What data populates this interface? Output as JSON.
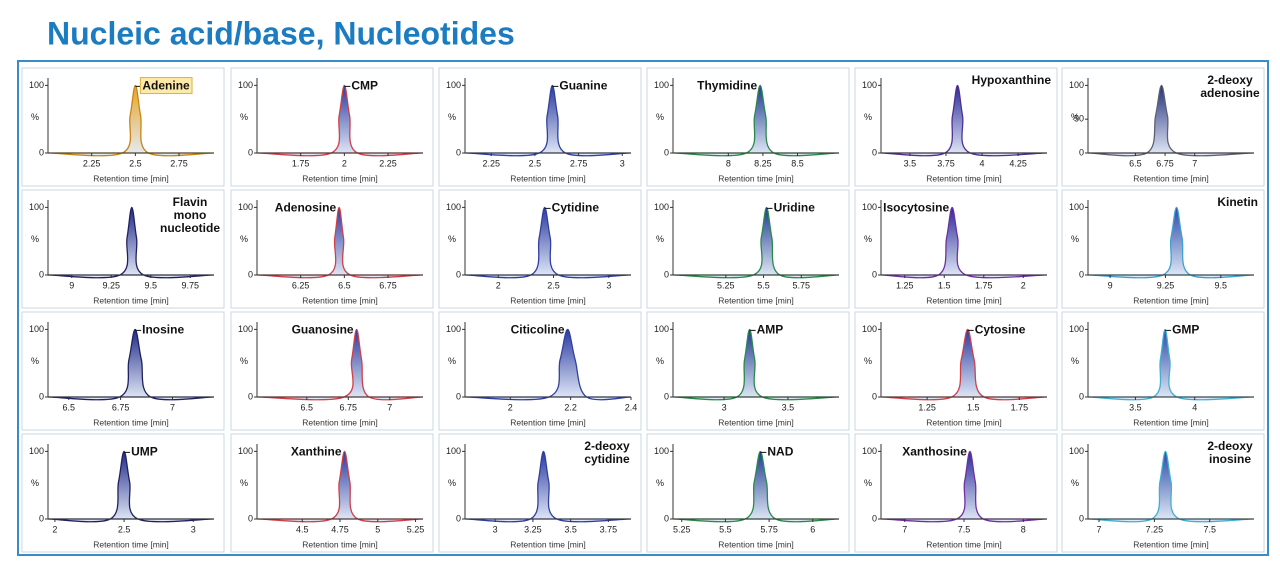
{
  "title": "Nucleic acid/base, Nucleotides",
  "chart_data": [
    {
      "type": "line",
      "title": "Adenine",
      "label_position": "right",
      "label_highlight": true,
      "x_label": "Retention time [min]",
      "y_label": "%",
      "x": [
        2.0,
        2.425,
        2.47,
        2.5,
        2.53,
        2.575,
        2.95
      ],
      "values": [
        0,
        0,
        55,
        100,
        55,
        0,
        0
      ],
      "color": "#c98510",
      "fill": "#e8a424",
      "xlim": [
        2.0,
        2.95
      ],
      "xticks": [
        2.25,
        2.5,
        2.75
      ],
      "ylim": [
        0,
        105
      ],
      "yticks": [
        0,
        100
      ]
    },
    {
      "type": "line",
      "title": "CMP",
      "label_position": "right",
      "x_label": "Retention time [min]",
      "y_label": "%",
      "x": [
        1.5,
        1.925,
        1.97,
        2.0,
        2.03,
        2.075,
        2.45
      ],
      "values": [
        0,
        0,
        55,
        100,
        55,
        0,
        0
      ],
      "color": "#d04048",
      "fill": "#2a3aa0",
      "xlim": [
        1.5,
        2.45
      ],
      "xticks": [
        1.75,
        2,
        2.25
      ],
      "ylim": [
        0,
        105
      ],
      "yticks": [
        0,
        100
      ]
    },
    {
      "type": "line",
      "title": "Guanine",
      "label_position": "right",
      "x_label": "Retention time [min]",
      "y_label": "%",
      "x": [
        2.1,
        2.525,
        2.57,
        2.6,
        2.63,
        2.675,
        3.05
      ],
      "values": [
        0,
        0,
        55,
        100,
        55,
        0,
        0
      ],
      "color": "#3040a0",
      "fill": "#2a3aa0",
      "xlim": [
        2.1,
        3.05
      ],
      "xticks": [
        2.25,
        2.5,
        2.75,
        3
      ],
      "ylim": [
        0,
        105
      ],
      "yticks": [
        0,
        100
      ]
    },
    {
      "type": "line",
      "title": "Thymidine",
      "label_position": "left",
      "x_label": "Retention time [min]",
      "y_label": "%",
      "x": [
        7.6,
        8.13,
        8.19,
        8.23,
        8.27,
        8.33,
        8.8
      ],
      "values": [
        0,
        0,
        55,
        100,
        55,
        0,
        0
      ],
      "color": "#2a8a4a",
      "fill": "#1f3a90",
      "xlim": [
        7.6,
        8.8
      ],
      "xticks": [
        8,
        8.25,
        8.5
      ],
      "ylim": [
        0,
        105
      ],
      "yticks": [
        0,
        100
      ]
    },
    {
      "type": "line",
      "title": "Hypoxanthine",
      "label_position": "corner",
      "x_label": "Retention time [min]",
      "y_label": "%",
      "x": [
        3.3,
        3.743,
        3.795,
        3.83,
        3.865,
        3.918,
        4.45
      ],
      "values": [
        0,
        0,
        55,
        100,
        55,
        0,
        0
      ],
      "color": "#503090",
      "fill": "#2a2a98",
      "xlim": [
        3.3,
        4.45
      ],
      "xticks": [
        3.5,
        3.75,
        4,
        4.25
      ],
      "ylim": [
        0,
        105
      ],
      "yticks": [
        0,
        100
      ]
    },
    {
      "type": "line",
      "title": [
        "2-deoxy",
        "adenosine"
      ],
      "label_position": "corner",
      "x_label": "Retention time [min]",
      "y_label": "%",
      "x": [
        6.1,
        6.595,
        6.67,
        6.72,
        6.77,
        6.845,
        7.5
      ],
      "values": [
        0,
        0,
        55,
        100,
        55,
        0,
        0
      ],
      "color": "#606070",
      "fill": "#24307a",
      "xlim": [
        6.1,
        7.5
      ],
      "xticks": [
        6.5,
        6.75,
        7
      ],
      "ylim": [
        0,
        105
      ],
      "yticks": [
        0,
        50,
        100
      ]
    },
    {
      "type": "line",
      "title": [
        "Flavin",
        "mono",
        "nucleotide"
      ],
      "label_position": "corner",
      "x_label": "Retention time [min]",
      "y_label": "%",
      "x": [
        8.85,
        9.305,
        9.35,
        9.38,
        9.41,
        9.455,
        9.9
      ],
      "values": [
        0,
        0,
        55,
        100,
        55,
        0,
        0
      ],
      "color": "#202060",
      "fill": "#1f2a88",
      "xlim": [
        8.85,
        9.9
      ],
      "xticks": [
        9,
        9.25,
        9.5,
        9.75
      ],
      "ylim": [
        0,
        105
      ],
      "yticks": [
        0,
        100
      ]
    },
    {
      "type": "line",
      "title": "Adenosine",
      "label_position": "left",
      "x_label": "Retention time [min]",
      "y_label": "%",
      "x": [
        6.0,
        6.408,
        6.445,
        6.47,
        6.495,
        6.533,
        6.95
      ],
      "values": [
        0,
        0,
        55,
        100,
        55,
        0,
        0
      ],
      "color": "#d04048",
      "fill": "#2a3aa0",
      "xlim": [
        6.0,
        6.95
      ],
      "xticks": [
        6.25,
        6.5,
        6.75
      ],
      "ylim": [
        0,
        105
      ],
      "yticks": [
        0,
        100
      ]
    },
    {
      "type": "line",
      "title": "Cytidine",
      "label_position": "right",
      "x_label": "Retention time [min]",
      "y_label": "%",
      "x": [
        1.7,
        2.295,
        2.37,
        2.42,
        2.47,
        2.545,
        3.2
      ],
      "values": [
        0,
        0,
        55,
        100,
        55,
        0,
        0
      ],
      "color": "#3040a0",
      "fill": "#2a3aa0",
      "xlim": [
        1.7,
        3.2
      ],
      "xticks": [
        2,
        2.5,
        3
      ],
      "ylim": [
        0,
        105
      ],
      "yticks": [
        0,
        100
      ]
    },
    {
      "type": "line",
      "title": "Uridine",
      "label_position": "right",
      "x_label": "Retention time [min]",
      "y_label": "%",
      "x": [
        4.9,
        5.433,
        5.485,
        5.52,
        5.555,
        5.608,
        6.0
      ],
      "values": [
        0,
        0,
        55,
        100,
        55,
        0,
        0
      ],
      "color": "#2a8a4a",
      "fill": "#1f3a90",
      "xlim": [
        4.9,
        6.0
      ],
      "xticks": [
        5.25,
        5.5,
        5.75
      ],
      "ylim": [
        0,
        105
      ],
      "yticks": [
        0,
        100
      ]
    },
    {
      "type": "line",
      "title": "Isocytosine",
      "label_position": "left",
      "x_label": "Retention time [min]",
      "y_label": "%",
      "x": [
        1.1,
        1.463,
        1.515,
        1.55,
        1.585,
        1.638,
        2.15
      ],
      "values": [
        0,
        0,
        55,
        100,
        55,
        0,
        0
      ],
      "color": "#7030a0",
      "fill": "#2a2a98",
      "xlim": [
        1.1,
        2.15
      ],
      "xticks": [
        1.25,
        1.5,
        1.75,
        2
      ],
      "ylim": [
        0,
        105
      ],
      "yticks": [
        0,
        100
      ]
    },
    {
      "type": "line",
      "title": "Kinetin",
      "label_position": "corner",
      "x_label": "Retention time [min]",
      "y_label": "%",
      "x": [
        8.9,
        9.238,
        9.275,
        9.3,
        9.325,
        9.363,
        9.65
      ],
      "values": [
        0,
        0,
        55,
        100,
        55,
        0,
        0
      ],
      "color": "#40a0d0",
      "fill": "#2a4aa8",
      "xlim": [
        8.9,
        9.65
      ],
      "xticks": [
        9,
        9.25,
        9.5
      ],
      "ylim": [
        0,
        105
      ],
      "yticks": [
        0,
        100
      ]
    },
    {
      "type": "line",
      "title": "Inosine",
      "label_position": "right",
      "x_label": "Retention time [min]",
      "y_label": "%",
      "x": [
        6.4,
        6.745,
        6.79,
        6.82,
        6.85,
        6.895,
        7.2
      ],
      "values": [
        0,
        0,
        55,
        100,
        55,
        0,
        0
      ],
      "color": "#202060",
      "fill": "#1f2a88",
      "xlim": [
        6.4,
        7.2
      ],
      "xticks": [
        6.5,
        6.75,
        7
      ],
      "ylim": [
        0,
        105
      ],
      "yticks": [
        0,
        100
      ]
    },
    {
      "type": "line",
      "title": "Guanosine",
      "label_position": "left",
      "x_label": "Retention time [min]",
      "y_label": "%",
      "x": [
        6.2,
        6.725,
        6.77,
        6.8,
        6.83,
        6.875,
        7.2
      ],
      "values": [
        0,
        0,
        55,
        100,
        55,
        0,
        0
      ],
      "color": "#d04048",
      "fill": "#2a3aa0",
      "xlim": [
        6.2,
        7.2
      ],
      "xticks": [
        6.5,
        6.75,
        7
      ],
      "ylim": [
        0,
        105
      ],
      "yticks": [
        0,
        100
      ]
    },
    {
      "type": "line",
      "title": "Citicoline",
      "label_position": "left",
      "x_label": "Retention time [min]",
      "y_label": "%",
      "x": [
        1.85,
        2.128,
        2.165,
        2.19,
        2.215,
        2.253,
        2.4
      ],
      "values": [
        0,
        0,
        55,
        100,
        55,
        0,
        0
      ],
      "color": "#3040a0",
      "fill": "#2a3aa0",
      "xlim": [
        1.85,
        2.4
      ],
      "xticks": [
        2,
        2.2,
        2.4
      ],
      "ylim": [
        0,
        105
      ],
      "yticks": [
        0,
        100
      ]
    },
    {
      "type": "line",
      "title": "AMP",
      "label_position": "right",
      "x_label": "Retention time [min]",
      "y_label": "%",
      "x": [
        2.6,
        3.1,
        3.16,
        3.2,
        3.24,
        3.3,
        3.9
      ],
      "values": [
        0,
        0,
        55,
        100,
        55,
        0,
        0
      ],
      "color": "#2a8a4a",
      "fill": "#1f3a90",
      "xlim": [
        2.6,
        3.9
      ],
      "xticks": [
        3,
        3.5
      ],
      "ylim": [
        0,
        105
      ],
      "yticks": [
        0,
        100
      ]
    },
    {
      "type": "line",
      "title": "Cytosine",
      "label_position": "right",
      "x_label": "Retention time [min]",
      "y_label": "%",
      "x": [
        1.0,
        1.383,
        1.435,
        1.47,
        1.505,
        1.558,
        1.9
      ],
      "values": [
        0,
        0,
        55,
        100,
        55,
        0,
        0
      ],
      "color": "#d04048",
      "fill": "#2a3aa0",
      "xlim": [
        1.0,
        1.9
      ],
      "xticks": [
        1.25,
        1.5,
        1.75
      ],
      "ylim": [
        0,
        105
      ],
      "yticks": [
        0,
        100
      ]
    },
    {
      "type": "line",
      "title": "GMP",
      "label_position": "right",
      "x_label": "Retention time [min]",
      "y_label": "%",
      "x": [
        3.1,
        3.65,
        3.71,
        3.75,
        3.79,
        3.85,
        4.5
      ],
      "values": [
        0,
        0,
        55,
        100,
        55,
        0,
        0
      ],
      "color": "#40b0d0",
      "fill": "#2a4aa8",
      "xlim": [
        3.1,
        4.5
      ],
      "xticks": [
        3.5,
        4
      ],
      "ylim": [
        0,
        105
      ],
      "yticks": [
        0,
        100
      ]
    },
    {
      "type": "line",
      "title": "UMP",
      "label_position": "right",
      "x_label": "Retention time [min]",
      "y_label": "%",
      "x": [
        1.95,
        2.4,
        2.46,
        2.5,
        2.54,
        2.6,
        3.15
      ],
      "values": [
        0,
        0,
        55,
        100,
        55,
        0,
        0
      ],
      "color": "#202060",
      "fill": "#1f2a88",
      "xlim": [
        1.95,
        3.15
      ],
      "xticks": [
        2,
        2.5,
        3
      ],
      "ylim": [
        0,
        105
      ],
      "yticks": [
        0,
        100
      ]
    },
    {
      "type": "line",
      "title": "Xanthine",
      "label_position": "left",
      "x_label": "Retention time [min]",
      "y_label": "%",
      "x": [
        4.2,
        4.693,
        4.745,
        4.78,
        4.815,
        4.868,
        5.3
      ],
      "values": [
        0,
        0,
        55,
        100,
        55,
        0,
        0
      ],
      "color": "#d04048",
      "fill": "#2a3aa0",
      "xlim": [
        4.2,
        5.3
      ],
      "xticks": [
        4.5,
        4.75,
        5,
        5.25
      ],
      "ylim": [
        0,
        105
      ],
      "yticks": [
        0,
        100
      ]
    },
    {
      "type": "line",
      "title": [
        "2-deoxy",
        "cytidine"
      ],
      "label_position": "corner",
      "x_label": "Retention time [min]",
      "y_label": "%",
      "x": [
        2.8,
        3.233,
        3.285,
        3.32,
        3.355,
        3.408,
        3.9
      ],
      "values": [
        0,
        0,
        55,
        100,
        55,
        0,
        0
      ],
      "color": "#3040a0",
      "fill": "#2a3aa0",
      "xlim": [
        2.8,
        3.9
      ],
      "xticks": [
        3,
        3.25,
        3.5,
        3.75
      ],
      "ylim": [
        0,
        105
      ],
      "yticks": [
        0,
        100
      ]
    },
    {
      "type": "line",
      "title": "NAD",
      "label_position": "right",
      "x_label": "Retention time [min]",
      "y_label": "%",
      "x": [
        5.2,
        5.613,
        5.665,
        5.7,
        5.735,
        5.788,
        6.15
      ],
      "values": [
        0,
        0,
        55,
        100,
        55,
        0,
        0
      ],
      "color": "#2a8a4a",
      "fill": "#1f3a90",
      "xlim": [
        5.2,
        6.15
      ],
      "xticks": [
        5.25,
        5.5,
        5.75,
        6
      ],
      "ylim": [
        0,
        105
      ],
      "yticks": [
        0,
        100
      ]
    },
    {
      "type": "line",
      "title": "Xanthosine",
      "label_position": "left",
      "x_label": "Retention time [min]",
      "y_label": "%",
      "x": [
        6.8,
        7.438,
        7.505,
        7.55,
        7.595,
        7.663,
        8.2
      ],
      "values": [
        0,
        0,
        55,
        100,
        55,
        0,
        0
      ],
      "color": "#7030a0",
      "fill": "#2a2a98",
      "xlim": [
        6.8,
        8.2
      ],
      "xticks": [
        7,
        7.5,
        8
      ],
      "ylim": [
        0,
        105
      ],
      "yticks": [
        0,
        100
      ]
    },
    {
      "type": "line",
      "title": [
        "2-deoxy",
        "inosine"
      ],
      "label_position": "corner",
      "x_label": "Retention time [min]",
      "y_label": "%",
      "x": [
        6.95,
        7.238,
        7.275,
        7.3,
        7.325,
        7.363,
        7.7
      ],
      "values": [
        0,
        0,
        55,
        100,
        55,
        0,
        0
      ],
      "color": "#40b0d0",
      "fill": "#2a4aa8",
      "xlim": [
        6.95,
        7.7
      ],
      "xticks": [
        7,
        7.25,
        7.5
      ],
      "ylim": [
        0,
        105
      ],
      "yticks": [
        0,
        100
      ]
    }
  ]
}
